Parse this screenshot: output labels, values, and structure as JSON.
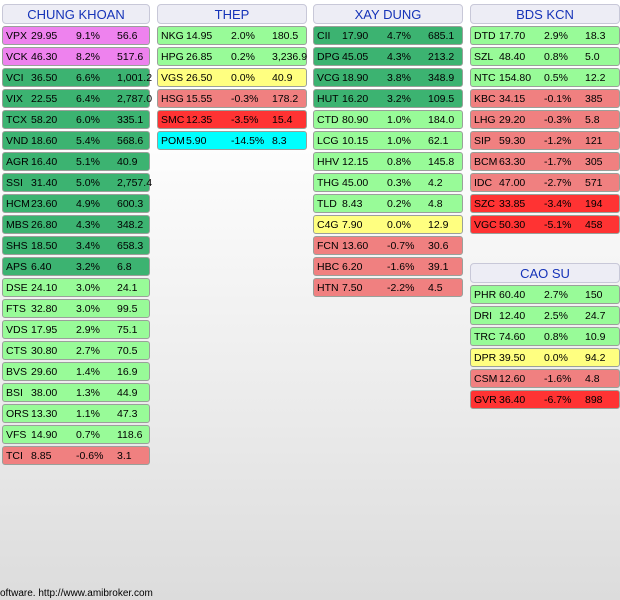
{
  "groups": [
    {
      "title": "CHUNG KHOAN",
      "rows": [
        {
          "sym": "VPX",
          "price": "29.95",
          "pct": "9.1%",
          "vol": "56.6",
          "color": "#ee82ee"
        },
        {
          "sym": "VCK",
          "price": "46.30",
          "pct": "8.2%",
          "vol": "517.6",
          "color": "#ee82ee"
        },
        {
          "sym": "VCI",
          "price": "36.50",
          "pct": "6.6%",
          "vol": "1,001.2",
          "color": "#3cb371"
        },
        {
          "sym": "VIX",
          "price": "22.55",
          "pct": "6.4%",
          "vol": "2,787.0",
          "color": "#3cb371"
        },
        {
          "sym": "TCX",
          "price": "58.20",
          "pct": "6.0%",
          "vol": "335.1",
          "color": "#3cb371"
        },
        {
          "sym": "VND",
          "price": "18.60",
          "pct": "5.4%",
          "vol": "568.6",
          "color": "#3cb371"
        },
        {
          "sym": "AGR",
          "price": "16.40",
          "pct": "5.1%",
          "vol": "40.9",
          "color": "#3cb371"
        },
        {
          "sym": "SSI",
          "price": "31.40",
          "pct": "5.0%",
          "vol": "2,757.4",
          "color": "#3cb371"
        },
        {
          "sym": "HCM",
          "price": "23.60",
          "pct": "4.9%",
          "vol": "600.3",
          "color": "#3cb371"
        },
        {
          "sym": "MBS",
          "price": "26.80",
          "pct": "4.3%",
          "vol": "348.2",
          "color": "#3cb371"
        },
        {
          "sym": "SHS",
          "price": "18.50",
          "pct": "3.4%",
          "vol": "658.3",
          "color": "#3cb371"
        },
        {
          "sym": "APS",
          "price": "6.40",
          "pct": "3.2%",
          "vol": "6.8",
          "color": "#3cb371"
        },
        {
          "sym": "DSE",
          "price": "24.10",
          "pct": "3.0%",
          "vol": "24.1",
          "color": "#98fb98"
        },
        {
          "sym": "FTS",
          "price": "32.80",
          "pct": "3.0%",
          "vol": "99.5",
          "color": "#98fb98"
        },
        {
          "sym": "VDS",
          "price": "17.95",
          "pct": "2.9%",
          "vol": "75.1",
          "color": "#98fb98"
        },
        {
          "sym": "CTS",
          "price": "30.80",
          "pct": "2.7%",
          "vol": "70.5",
          "color": "#98fb98"
        },
        {
          "sym": "BVS",
          "price": "29.60",
          "pct": "1.4%",
          "vol": "16.9",
          "color": "#98fb98"
        },
        {
          "sym": "BSI",
          "price": "38.00",
          "pct": "1.3%",
          "vol": "44.9",
          "color": "#98fb98"
        },
        {
          "sym": "ORS",
          "price": "13.30",
          "pct": "1.1%",
          "vol": "47.3",
          "color": "#98fb98"
        },
        {
          "sym": "VFS",
          "price": "14.90",
          "pct": "0.7%",
          "vol": "118.6",
          "color": "#98fb98"
        },
        {
          "sym": "TCI",
          "price": "8.85",
          "pct": "-0.6%",
          "vol": "3.1",
          "color": "#f08080"
        }
      ]
    },
    {
      "title": "THEP",
      "rows": [
        {
          "sym": "NKG",
          "price": "14.95",
          "pct": "2.0%",
          "vol": "180.5",
          "color": "#98fb98"
        },
        {
          "sym": "HPG",
          "price": "26.85",
          "pct": "0.2%",
          "vol": "3,236.9",
          "color": "#98fb98"
        },
        {
          "sym": "VGS",
          "price": "26.50",
          "pct": "0.0%",
          "vol": "40.9",
          "color": "#ffff80"
        },
        {
          "sym": "HSG",
          "price": "15.55",
          "pct": "-0.3%",
          "vol": "178.2",
          "color": "#f08080"
        },
        {
          "sym": "SMC",
          "price": "12.35",
          "pct": "-3.5%",
          "vol": "15.4",
          "color": "#ff3333"
        },
        {
          "sym": "POM",
          "price": "5.90",
          "pct": "-14.5%",
          "vol": "8.3",
          "color": "#00ffff"
        }
      ]
    },
    {
      "title": "XAY DUNG",
      "rows": [
        {
          "sym": "CII",
          "price": "17.90",
          "pct": "4.7%",
          "vol": "685.1",
          "color": "#3cb371"
        },
        {
          "sym": "DPG",
          "price": "45.05",
          "pct": "4.3%",
          "vol": "213.2",
          "color": "#3cb371"
        },
        {
          "sym": "VCG",
          "price": "18.90",
          "pct": "3.8%",
          "vol": "348.9",
          "color": "#3cb371"
        },
        {
          "sym": "HUT",
          "price": "16.20",
          "pct": "3.2%",
          "vol": "109.5",
          "color": "#3cb371"
        },
        {
          "sym": "CTD",
          "price": "80.90",
          "pct": "1.0%",
          "vol": "184.0",
          "color": "#98fb98"
        },
        {
          "sym": "LCG",
          "price": "10.15",
          "pct": "1.0%",
          "vol": "62.1",
          "color": "#98fb98"
        },
        {
          "sym": "HHV",
          "price": "12.15",
          "pct": "0.8%",
          "vol": "145.8",
          "color": "#98fb98"
        },
        {
          "sym": "THG",
          "price": "45.00",
          "pct": "0.3%",
          "vol": "4.2",
          "color": "#98fb98"
        },
        {
          "sym": "TLD",
          "price": "8.43",
          "pct": "0.2%",
          "vol": "4.8",
          "color": "#98fb98"
        },
        {
          "sym": "C4G",
          "price": "7.90",
          "pct": "0.0%",
          "vol": "12.9",
          "color": "#ffff80"
        },
        {
          "sym": "FCN",
          "price": "13.60",
          "pct": "-0.7%",
          "vol": "30.6",
          "color": "#f08080"
        },
        {
          "sym": "HBC",
          "price": "6.20",
          "pct": "-1.6%",
          "vol": "39.1",
          "color": "#f08080"
        },
        {
          "sym": "HTN",
          "price": "7.50",
          "pct": "-2.2%",
          "vol": "4.5",
          "color": "#f08080"
        }
      ]
    },
    {
      "title": "BDS KCN",
      "rows": [
        {
          "sym": "DTD",
          "price": "17.70",
          "pct": "2.9%",
          "vol": "18.3",
          "color": "#98fb98"
        },
        {
          "sym": "SZL",
          "price": "48.40",
          "pct": "0.8%",
          "vol": "5.0",
          "color": "#98fb98"
        },
        {
          "sym": "NTC",
          "price": "154.80",
          "pct": "0.5%",
          "vol": "12.2",
          "color": "#98fb98"
        },
        {
          "sym": "KBC",
          "price": "34.15",
          "pct": "-0.1%",
          "vol": "385",
          "color": "#f08080"
        },
        {
          "sym": "LHG",
          "price": "29.20",
          "pct": "-0.3%",
          "vol": "5.8",
          "color": "#f08080"
        },
        {
          "sym": "SIP",
          "price": "59.30",
          "pct": "-1.2%",
          "vol": "121",
          "color": "#f08080"
        },
        {
          "sym": "BCM",
          "price": "63.30",
          "pct": "-1.7%",
          "vol": "305",
          "color": "#f08080"
        },
        {
          "sym": "IDC",
          "price": "47.00",
          "pct": "-2.7%",
          "vol": "571",
          "color": "#f08080"
        },
        {
          "sym": "SZC",
          "price": "33.85",
          "pct": "-3.4%",
          "vol": "194",
          "color": "#ff3333"
        },
        {
          "sym": "VGC",
          "price": "50.30",
          "pct": "-5.1%",
          "vol": "458",
          "color": "#ff3333"
        }
      ]
    },
    {
      "title": "CAO SU",
      "rows": [
        {
          "sym": "PHR",
          "price": "60.40",
          "pct": "2.7%",
          "vol": "150",
          "color": "#98fb98"
        },
        {
          "sym": "DRI",
          "price": "12.40",
          "pct": "2.5%",
          "vol": "24.7",
          "color": "#98fb98"
        },
        {
          "sym": "TRC",
          "price": "74.60",
          "pct": "0.8%",
          "vol": "10.9",
          "color": "#98fb98"
        },
        {
          "sym": "DPR",
          "price": "39.50",
          "pct": "0.0%",
          "vol": "94.2",
          "color": "#ffff80"
        },
        {
          "sym": "CSM",
          "price": "12.60",
          "pct": "-1.6%",
          "vol": "4.8",
          "color": "#f08080"
        },
        {
          "sym": "GVR",
          "price": "36.40",
          "pct": "-6.7%",
          "vol": "898",
          "color": "#ff3333"
        }
      ]
    }
  ],
  "footer": {
    "credit": "oftware. http://www.amibroker.com"
  }
}
